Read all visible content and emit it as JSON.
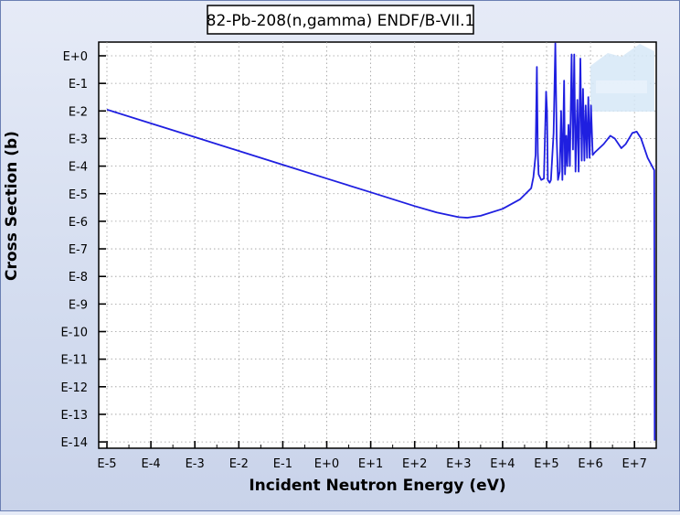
{
  "chart_data": {
    "type": "line",
    "title": "82-Pb-208(n,gamma) ENDF/B-VII.1",
    "xlabel": "Incident Neutron Energy (eV)",
    "ylabel": "Cross Section (b)",
    "x_scale": "log",
    "y_scale": "log",
    "xlim_exponent": [
      -5,
      7.5
    ],
    "ylim_exponent": [
      -14,
      0.3
    ],
    "x_ticks": [
      {
        "exp": -5,
        "label": "E-5"
      },
      {
        "exp": -4,
        "label": "E-4"
      },
      {
        "exp": -3,
        "label": "E-3"
      },
      {
        "exp": -2,
        "label": "E-2"
      },
      {
        "exp": -1,
        "label": "E-1"
      },
      {
        "exp": 0,
        "label": "E+0"
      },
      {
        "exp": 1,
        "label": "E+1"
      },
      {
        "exp": 2,
        "label": "E+2"
      },
      {
        "exp": 3,
        "label": "E+3"
      },
      {
        "exp": 4,
        "label": "E+4"
      },
      {
        "exp": 5,
        "label": "E+5"
      },
      {
        "exp": 6,
        "label": "E+6"
      },
      {
        "exp": 7,
        "label": "E+7"
      }
    ],
    "y_ticks": [
      {
        "exp": 0,
        "label": "E+0"
      },
      {
        "exp": -1,
        "label": "E-1"
      },
      {
        "exp": -2,
        "label": "E-2"
      },
      {
        "exp": -3,
        "label": "E-3"
      },
      {
        "exp": -4,
        "label": "E-4"
      },
      {
        "exp": -5,
        "label": "E-5"
      },
      {
        "exp": -6,
        "label": "E-6"
      },
      {
        "exp": -7,
        "label": "E-7"
      },
      {
        "exp": -8,
        "label": "E-8"
      },
      {
        "exp": -9,
        "label": "E-9"
      },
      {
        "exp": -10,
        "label": "E-10"
      },
      {
        "exp": -11,
        "label": "E-11"
      },
      {
        "exp": -12,
        "label": "E-12"
      },
      {
        "exp": -13,
        "label": "E-13"
      },
      {
        "exp": -14,
        "label": "E-14"
      }
    ],
    "grid": true,
    "series": [
      {
        "color": "#1f1fe0",
        "points_log10": [
          [
            -5.0,
            -1.95
          ],
          [
            -4.0,
            -2.45
          ],
          [
            -3.0,
            -2.95
          ],
          [
            -2.0,
            -3.45
          ],
          [
            -1.0,
            -3.95
          ],
          [
            0.0,
            -4.45
          ],
          [
            1.0,
            -4.95
          ],
          [
            2.0,
            -5.45
          ],
          [
            2.5,
            -5.68
          ],
          [
            3.0,
            -5.85
          ],
          [
            3.2,
            -5.87
          ],
          [
            3.5,
            -5.8
          ],
          [
            4.0,
            -5.55
          ],
          [
            4.4,
            -5.2
          ],
          [
            4.65,
            -4.8
          ],
          [
            4.7,
            -4.4
          ],
          [
            4.75,
            -3.6
          ],
          [
            4.78,
            -0.4
          ],
          [
            4.8,
            -3.5
          ],
          [
            4.82,
            -4.3
          ],
          [
            4.88,
            -4.5
          ],
          [
            4.94,
            -4.45
          ],
          [
            4.97,
            -2.5
          ],
          [
            4.99,
            -1.3
          ],
          [
            5.01,
            -2.0
          ],
          [
            5.03,
            -4.5
          ],
          [
            5.07,
            -4.6
          ],
          [
            5.1,
            -4.5
          ],
          [
            5.16,
            -2.8
          ],
          [
            5.2,
            0.45
          ],
          [
            5.23,
            -3.0
          ],
          [
            5.26,
            -4.5
          ],
          [
            5.3,
            -4.2
          ],
          [
            5.33,
            -2.0
          ],
          [
            5.36,
            -4.5
          ],
          [
            5.4,
            -0.9
          ],
          [
            5.42,
            -4.3
          ],
          [
            5.45,
            -2.9
          ],
          [
            5.47,
            -4.0
          ],
          [
            5.5,
            -2.5
          ],
          [
            5.53,
            -4.0
          ],
          [
            5.57,
            0.05
          ],
          [
            5.6,
            -3.4
          ],
          [
            5.63,
            0.05
          ],
          [
            5.66,
            -4.2
          ],
          [
            5.7,
            -1.6
          ],
          [
            5.73,
            -4.2
          ],
          [
            5.77,
            -0.1
          ],
          [
            5.8,
            -3.8
          ],
          [
            5.83,
            -1.2
          ],
          [
            5.86,
            -3.8
          ],
          [
            5.89,
            -1.8
          ],
          [
            5.92,
            -3.7
          ],
          [
            5.95,
            -1.5
          ],
          [
            5.98,
            -3.7
          ],
          [
            6.01,
            -1.8
          ],
          [
            6.05,
            -3.6
          ],
          [
            6.1,
            -3.5
          ],
          [
            6.3,
            -3.2
          ],
          [
            6.45,
            -2.9
          ],
          [
            6.55,
            -3.0
          ],
          [
            6.7,
            -3.35
          ],
          [
            6.8,
            -3.2
          ],
          [
            6.95,
            -2.8
          ],
          [
            7.05,
            -2.75
          ],
          [
            7.15,
            -3.0
          ],
          [
            7.3,
            -3.7
          ],
          [
            7.45,
            -4.15
          ],
          [
            7.46,
            -13.95
          ]
        ]
      }
    ]
  }
}
